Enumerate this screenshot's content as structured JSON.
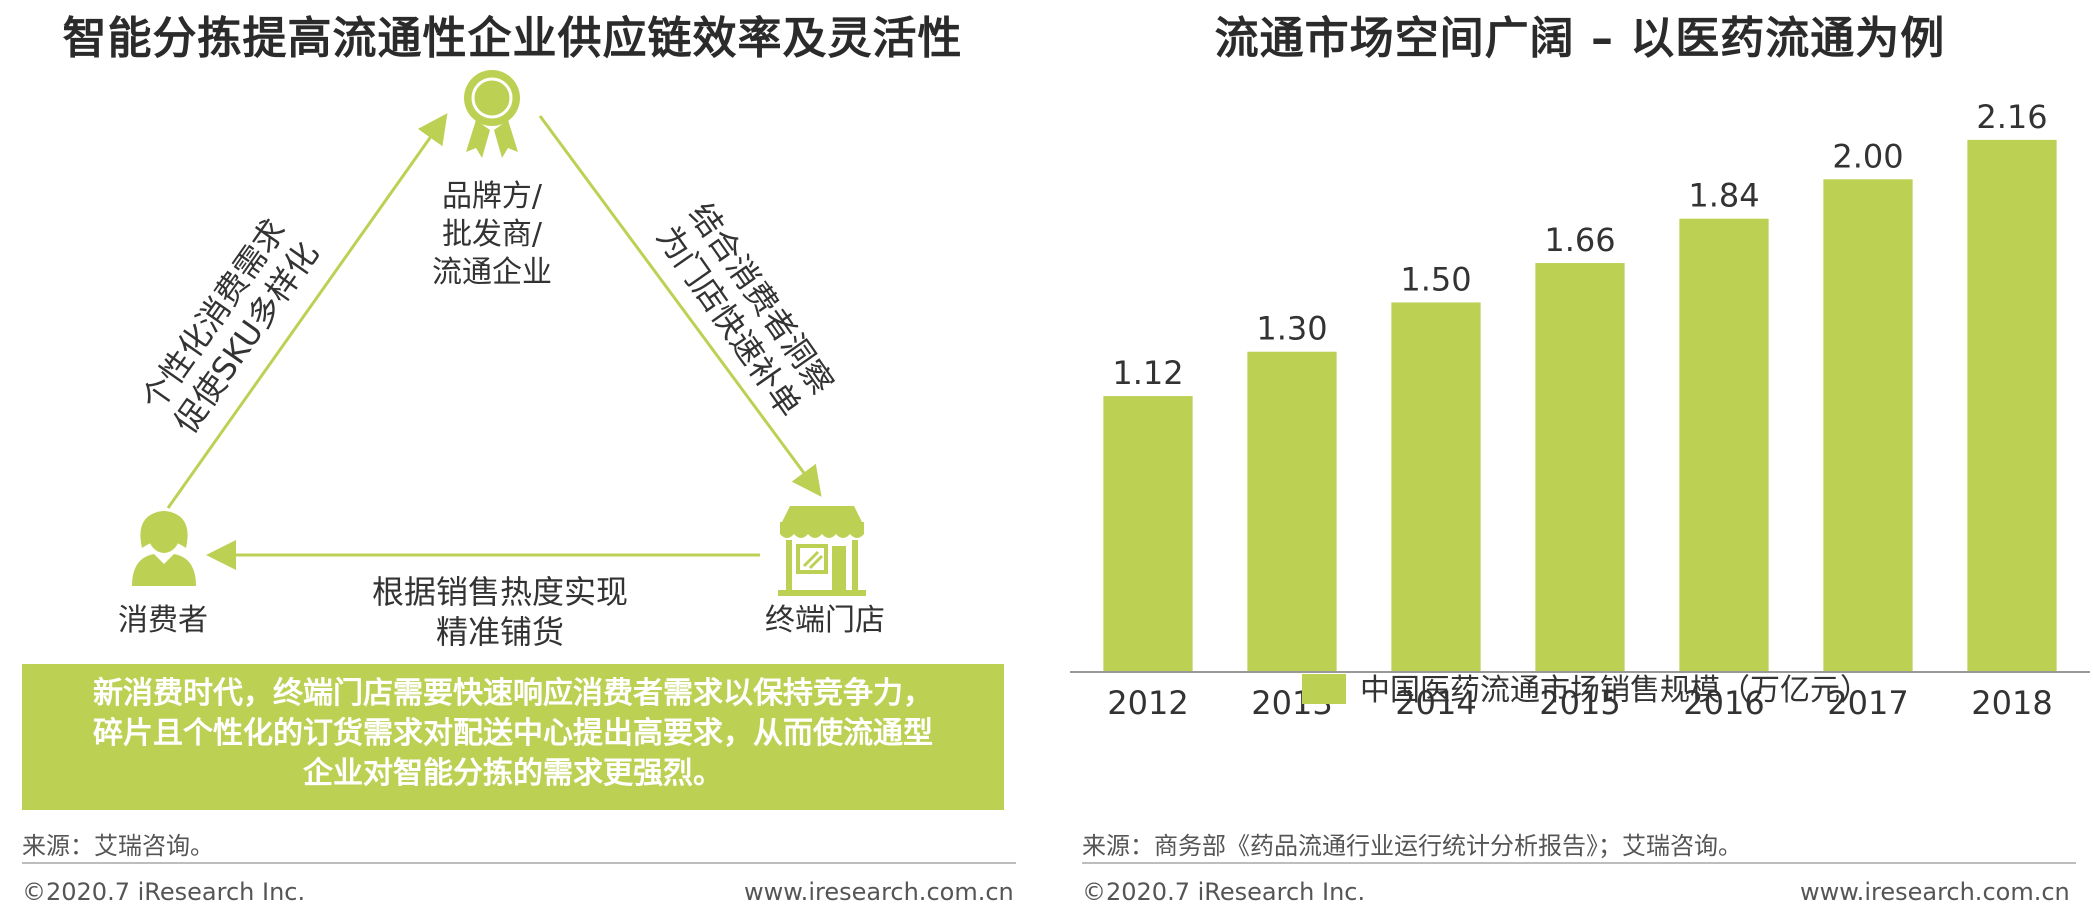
{
  "left": {
    "title": "智能分拣提高流通性企业供应链效率及灵活性",
    "nodes": {
      "brand": [
        "品牌方/",
        "批发商/",
        "流通企业"
      ],
      "consumer": "消费者",
      "store": "终端门店"
    },
    "edges": {
      "left": [
        "个性化消费需求",
        "促使SKU多样化"
      ],
      "right": [
        "结合消费者洞察",
        "为门店快速补单"
      ],
      "bottom": [
        "根据销售热度实现",
        "精准铺货"
      ]
    },
    "callout": [
      "新消费时代，终端门店需要快速响应消费者需求以保持竞争力，",
      "碎片且个性化的订货需求对配送中心提出高要求，从而使流通型",
      "企业对智能分拣的需求更强烈。"
    ],
    "source": "来源：艾瑞咨询。",
    "footer_copyright": "©2020.7 iResearch Inc.",
    "footer_url": "www.iresearch.com.cn"
  },
  "right": {
    "title": "流通市场空间广阔 – 以医药流通为例",
    "source": "来源：商务部《药品流通行业运行统计分析报告》；艾瑞咨询。",
    "footer_copyright": "©2020.7 iResearch Inc.",
    "footer_url": "www.iresearch.com.cn"
  },
  "colors": {
    "accent": "#bcd154",
    "text": "#333333",
    "rule": "#bdbdbd"
  },
  "icons": {
    "brand": "award-ribbon-icon",
    "consumer": "person-icon",
    "store": "storefront-icon"
  },
  "chart_data": {
    "type": "bar",
    "categories": [
      "2012",
      "2013",
      "2014",
      "2015",
      "2016",
      "2017",
      "2018"
    ],
    "series": [
      {
        "name": "中国医药流通市场销售规模（万亿元）",
        "values": [
          1.12,
          1.3,
          1.5,
          1.66,
          1.84,
          2.0,
          2.16
        ]
      }
    ],
    "value_labels": [
      "1.12",
      "1.30",
      "1.50",
      "1.66",
      "1.84",
      "2.00",
      "2.16"
    ],
    "xlabel": "",
    "ylabel": "",
    "ylim": [
      0,
      2.2
    ],
    "grid": false,
    "legend": "bottom-center"
  }
}
